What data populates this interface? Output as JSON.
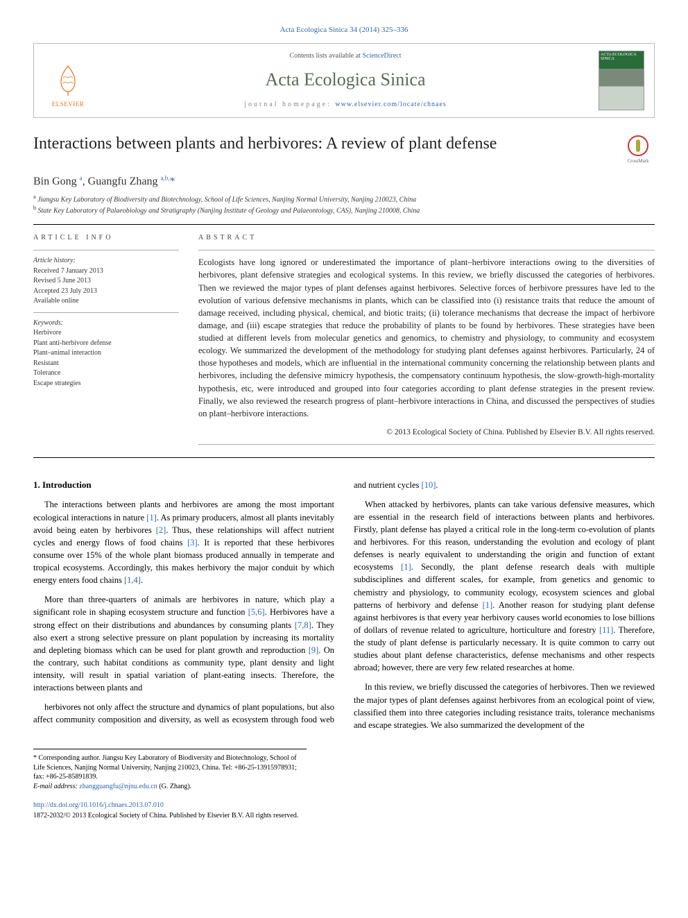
{
  "citation": "Acta Ecologica Sinica 34 (2014) 325–336",
  "masthead": {
    "contents_prefix": "Contents lists available at ",
    "contents_link": "ScienceDirect",
    "journal_title": "Acta Ecologica Sinica",
    "homepage_prefix": "journal homepage: ",
    "homepage_url": "www.elsevier.com/locate/chnaes",
    "publisher_logo": "ELSEVIER",
    "cover_label": "ACTA ECOLOGICA SINICA"
  },
  "article": {
    "title": "Interactions between plants and herbivores: A review of plant defense",
    "crossmark": "CrossMark",
    "authors_html": "Bin Gong <sup>a</sup>, Guangfu Zhang <sup>a,b,</sup><span class='corr'>*</span>",
    "affiliations": {
      "a": "Jiangsu Key Laboratory of Biodiversity and Biotechnology, School of Life Sciences, Nanjing Normal University, Nanjing 210023, China",
      "b": "State Key Laboratory of Palaeobiology and Stratigraphy (Nanjing Institute of Geology and Palaeontology, CAS), Nanjing 210008, China"
    }
  },
  "info": {
    "heading": "ARTICLE INFO",
    "history_label": "Article history:",
    "history": {
      "received": "Received 7 January 2013",
      "revised": "Revised 5 June 2013",
      "accepted": "Accepted 23 July 2013",
      "online": "Available online"
    },
    "keywords_label": "Keywords:",
    "keywords": [
      "Herbivore",
      "Plant anti-herbivore defense",
      "Plant–animal interaction",
      "Resistant",
      "Tolerance",
      "Escape strategies"
    ]
  },
  "abstract": {
    "heading": "ABSTRACT",
    "body": "Ecologists have long ignored or underestimated the importance of plant–herbivore interactions owing to the diversities of herbivores, plant defensive strategies and ecological systems. In this review, we briefly discussed the categories of herbivores. Then we reviewed the major types of plant defenses against herbivores. Selective forces of herbivore pressures have led to the evolution of various defensive mechanisms in plants, which can be classified into (i) resistance traits that reduce the amount of damage received, including physical, chemical, and biotic traits; (ii) tolerance mechanisms that decrease the impact of herbivore damage, and (iii) escape strategies that reduce the probability of plants to be found by herbivores. These strategies have been studied at different levels from molecular genetics and genomics, to chemistry and physiology, to community and ecosystem ecology. We summarized the development of the methodology for studying plant defenses against herbivores. Particularly, 24 of those hypotheses and models, which are influential in the international community concerning the relationship between plants and herbivores, including the defensive mimicry hypothesis, the compensatory continuum hypothesis, the slow-growth-high-mortality hypothesis, etc, were introduced and grouped into four categories according to plant defense strategies in the present review. Finally, we also reviewed the research progress of plant–herbivore interactions in China, and discussed the perspectives of studies on plant–herbivore interactions.",
    "copyright": "© 2013 Ecological Society of China. Published by Elsevier B.V. All rights reserved."
  },
  "body": {
    "section1_heading": "1. Introduction",
    "p1": "The interactions between plants and herbivores are among the most important ecological interactions in nature [1]. As primary producers, almost all plants inevitably avoid being eaten by herbivores [2]. Thus, these relationships will affect nutrient cycles and energy flows of food chains [3]. It is reported that these herbivores consume over 15% of the whole plant biomass produced annually in temperate and tropical ecosystems. Accordingly, this makes herbivory the major conduit by which energy enters food chains [1,4].",
    "p2": "More than three-quarters of animals are herbivores in nature, which play a significant role in shaping ecosystem structure and function [5,6]. Herbivores have a strong effect on their distributions and abundances by consuming plants [7,8]. They also exert a strong selective pressure on plant population by increasing its mortality and depleting biomass which can be used for plant growth and reproduction [9]. On the contrary, such habitat conditions as community type, plant density and light intensity, will result in spatial variation of plant-eating insects. Therefore, the interactions between plants and",
    "p3": "herbivores not only affect the structure and dynamics of plant populations, but also affect community composition and diversity, as well as ecosystem through food web and nutrient cycles [10].",
    "p4": "When attacked by herbivores, plants can take various defensive measures, which are essential in the research field of interactions between plants and herbivores. Firstly, plant defense has played a critical role in the long-term co-evolution of plants and herbivores. For this reason, understanding the evolution and ecology of plant defenses is nearly equivalent to understanding the origin and function of extant ecosystems [1]. Secondly, the plant defense research deals with multiple subdisciplines and different scales, for example, from genetics and genomic to chemistry and physiology, to community ecology, ecosystem sciences and global patterns of herbivory and defense [1]. Another reason for studying plant defense against herbivores is that every year herbivory causes world economies to lose billions of dollars of revenue related to agriculture, horticulture and forestry [11]. Therefore, the study of plant defense is particularly necessary. It is quite common to carry out studies about plant defense characteristics, defense mechanisms and other respects abroad; however, there are very few related researches at home.",
    "p5": "In this review, we briefly discussed the categories of herbivores. Then we reviewed the major types of plant defenses against herbivores from an ecological point of view, classified them into three categories including resistance traits, tolerance mechanisms and escape strategies. We also summarized the development of the"
  },
  "footnotes": {
    "corr": "* Corresponding author. Jiangsu Key Laboratory of Biodiversity and Biotechnology, School of Life Sciences, Nanjing Normal University, Nanjing 210023, China. Tel: +86-25-13915978931; fax: +86-25-85891839.",
    "email_label": "E-mail address: ",
    "email": "zhangguangfu@njnu.edu.cn",
    "email_suffix": " (G. Zhang)."
  },
  "footer": {
    "doi": "http://dx.doi.org/10.1016/j.chnaes.2013.07.010",
    "issn_line": "1872-2032/© 2013 Ecological Society of China. Published by Elsevier B.V. All rights reserved."
  },
  "refs": {
    "r1": "[1]",
    "r2": "[2]",
    "r3": "[3]",
    "r14": "[1,4]",
    "r56": "[5,6]",
    "r78": "[7,8]",
    "r9": "[9]",
    "r10": "[10]",
    "r11": "[11]"
  },
  "colors": {
    "link": "#3366aa",
    "elsevier_orange": "#e9711c",
    "journal_title": "#5a6a5a"
  }
}
